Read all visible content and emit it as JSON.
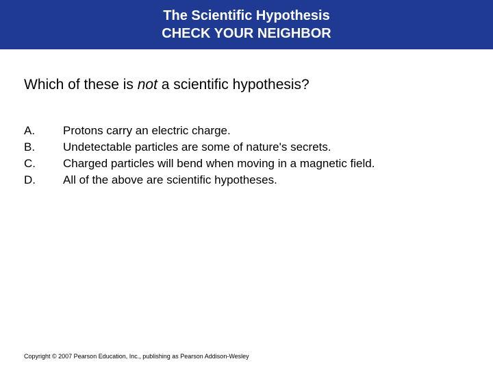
{
  "header": {
    "line1": "The Scientific Hypothesis",
    "line2": "CHECK YOUR NEIGHBOR"
  },
  "question": {
    "prefix": "Which of these is ",
    "italic": "not",
    "suffix": " a scientific hypothesis?"
  },
  "options": [
    {
      "letter": "A.",
      "text": "Protons carry an electric charge."
    },
    {
      "letter": "B.",
      "text": "Undetectable particles are some of nature's secrets."
    },
    {
      "letter": "C.",
      "text": "Charged particles will bend when moving in a magnetic field."
    },
    {
      "letter": "D.",
      "text": "All of the above are scientific hypotheses."
    }
  ],
  "footer": "Copyright © 2007 Pearson Education, Inc., publishing as Pearson Addison-Wesley",
  "colors": {
    "header_bg": "#1f3a93",
    "header_text": "#ffffff",
    "body_bg": "#ffffff",
    "text": "#000000"
  },
  "typography": {
    "header_fontsize": 20,
    "question_fontsize": 21,
    "option_fontsize": 17,
    "footer_fontsize": 9
  }
}
